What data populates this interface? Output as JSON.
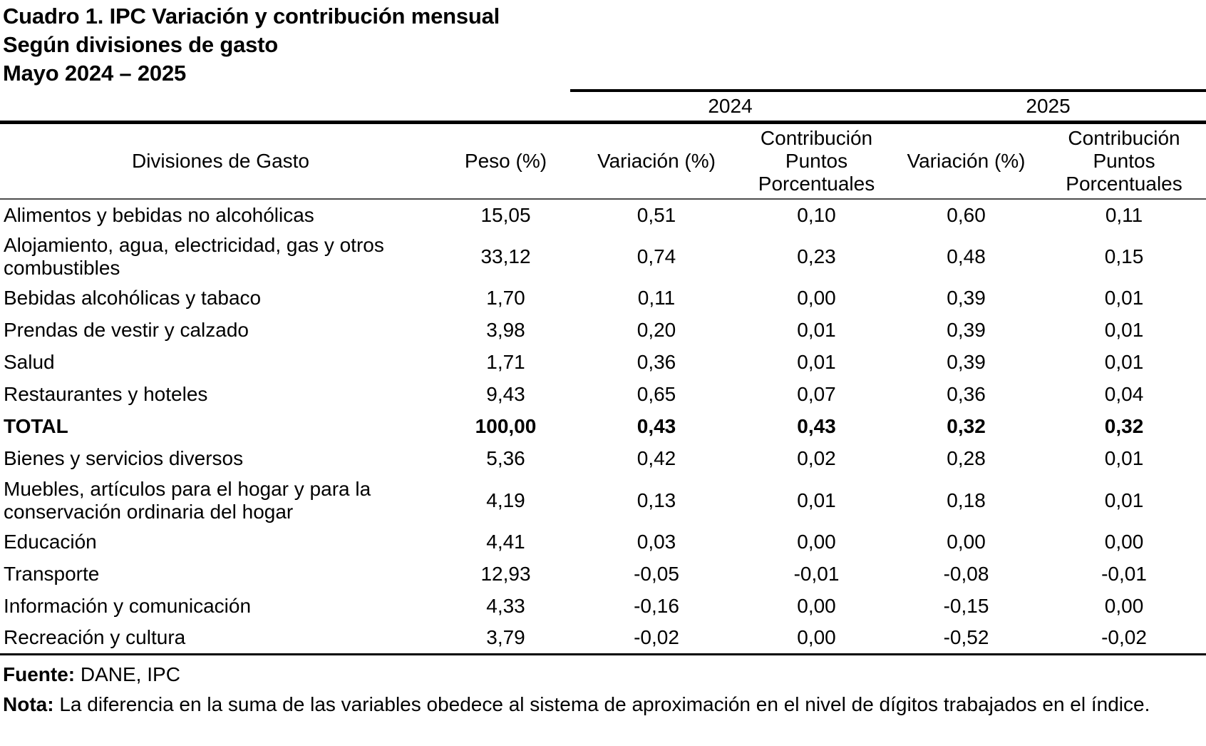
{
  "title": {
    "line1": "Cuadro 1. IPC Variación y contribución mensual",
    "line2": "Según divisiones de gasto",
    "line3": "Mayo 2024 – 2025"
  },
  "table": {
    "year_headers": [
      "2024",
      "2025"
    ],
    "columns": [
      "Divisiones de Gasto",
      "Peso (%)",
      "Variación (%)",
      "Contribución Puntos Porcentuales",
      "Variación (%)",
      "Contribución Puntos Porcentuales"
    ],
    "rows": [
      {
        "division": "Alimentos y bebidas no alcohólicas",
        "peso": "15,05",
        "var_2024": "0,51",
        "contrib_2024": "0,10",
        "var_2025": "0,60",
        "contrib_2025": "0,11",
        "bold": false
      },
      {
        "division": "Alojamiento, agua, electricidad, gas y otros combustibles",
        "peso": "33,12",
        "var_2024": "0,74",
        "contrib_2024": "0,23",
        "var_2025": "0,48",
        "contrib_2025": "0,15",
        "bold": false
      },
      {
        "division": "Bebidas alcohólicas y tabaco",
        "peso": "1,70",
        "var_2024": "0,11",
        "contrib_2024": "0,00",
        "var_2025": "0,39",
        "contrib_2025": "0,01",
        "bold": false
      },
      {
        "division": "Prendas de vestir y calzado",
        "peso": "3,98",
        "var_2024": "0,20",
        "contrib_2024": "0,01",
        "var_2025": "0,39",
        "contrib_2025": "0,01",
        "bold": false
      },
      {
        "division": "Salud",
        "peso": "1,71",
        "var_2024": "0,36",
        "contrib_2024": "0,01",
        "var_2025": "0,39",
        "contrib_2025": "0,01",
        "bold": false
      },
      {
        "division": "Restaurantes y hoteles",
        "peso": "9,43",
        "var_2024": "0,65",
        "contrib_2024": "0,07",
        "var_2025": "0,36",
        "contrib_2025": "0,04",
        "bold": false
      },
      {
        "division": "TOTAL",
        "peso": "100,00",
        "var_2024": "0,43",
        "contrib_2024": "0,43",
        "var_2025": "0,32",
        "contrib_2025": "0,32",
        "bold": true
      },
      {
        "division": "Bienes y servicios diversos",
        "peso": "5,36",
        "var_2024": "0,42",
        "contrib_2024": "0,02",
        "var_2025": "0,28",
        "contrib_2025": "0,01",
        "bold": false
      },
      {
        "division": "Muebles, artículos para el hogar y para la conservación ordinaria del hogar",
        "peso": "4,19",
        "var_2024": "0,13",
        "contrib_2024": "0,01",
        "var_2025": "0,18",
        "contrib_2025": "0,01",
        "bold": false
      },
      {
        "division": "Educación",
        "peso": "4,41",
        "var_2024": "0,03",
        "contrib_2024": "0,00",
        "var_2025": "0,00",
        "contrib_2025": "0,00",
        "bold": false
      },
      {
        "division": "Transporte",
        "peso": "12,93",
        "var_2024": "-0,05",
        "contrib_2024": "-0,01",
        "var_2025": "-0,08",
        "contrib_2025": "-0,01",
        "bold": false
      },
      {
        "division": "Información y comunicación",
        "peso": "4,33",
        "var_2024": "-0,16",
        "contrib_2024": "0,00",
        "var_2025": "-0,15",
        "contrib_2025": "0,00",
        "bold": false
      },
      {
        "division": "Recreación y cultura",
        "peso": "3,79",
        "var_2024": "-0,02",
        "contrib_2024": "0,00",
        "var_2025": "-0,52",
        "contrib_2025": "-0,02",
        "bold": false
      }
    ]
  },
  "footer": {
    "fuente_label": "Fuente:",
    "fuente_text": " DANE, IPC",
    "nota_label": "Nota:",
    "nota_text": " La diferencia en la suma de las variables obedece al sistema de aproximación en el nivel de dígitos trabajados en el índice."
  },
  "colors": {
    "text": "#000000",
    "rule_thick": "#000000",
    "rule_thin": "#4d4d4d",
    "background": "#ffffff"
  }
}
